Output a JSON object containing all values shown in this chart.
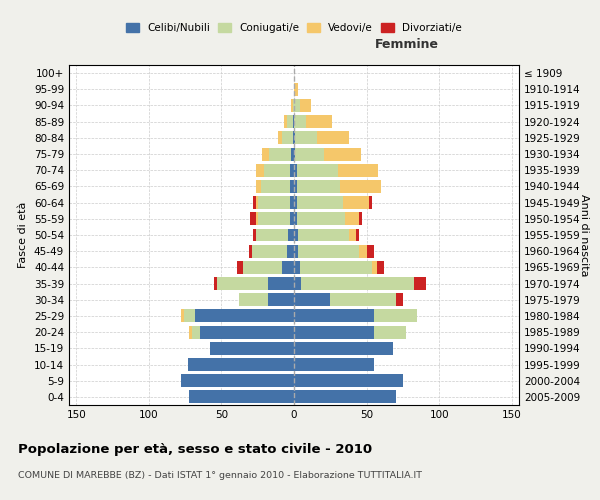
{
  "age_groups": [
    "0-4",
    "5-9",
    "10-14",
    "15-19",
    "20-24",
    "25-29",
    "30-34",
    "35-39",
    "40-44",
    "45-49",
    "50-54",
    "55-59",
    "60-64",
    "65-69",
    "70-74",
    "75-79",
    "80-84",
    "85-89",
    "90-94",
    "95-99",
    "100+"
  ],
  "birth_years": [
    "2005-2009",
    "2000-2004",
    "1995-1999",
    "1990-1994",
    "1985-1989",
    "1980-1984",
    "1975-1979",
    "1970-1974",
    "1965-1969",
    "1960-1964",
    "1955-1959",
    "1950-1954",
    "1945-1949",
    "1940-1944",
    "1935-1939",
    "1930-1934",
    "1925-1929",
    "1920-1924",
    "1915-1919",
    "1910-1914",
    "≤ 1909"
  ],
  "male": {
    "celibi": [
      72,
      78,
      73,
      58,
      65,
      68,
      18,
      18,
      8,
      5,
      4,
      3,
      3,
      3,
      3,
      2,
      1,
      1,
      0,
      0,
      0
    ],
    "coniugati": [
      0,
      0,
      0,
      0,
      5,
      8,
      20,
      35,
      27,
      24,
      22,
      22,
      22,
      20,
      18,
      15,
      7,
      4,
      1,
      0,
      0
    ],
    "vedovi": [
      0,
      0,
      0,
      0,
      2,
      2,
      0,
      0,
      0,
      0,
      0,
      1,
      1,
      3,
      5,
      5,
      3,
      2,
      1,
      0,
      0
    ],
    "divorziati": [
      0,
      0,
      0,
      0,
      0,
      0,
      0,
      2,
      4,
      2,
      2,
      4,
      2,
      0,
      0,
      0,
      0,
      0,
      0,
      0,
      0
    ]
  },
  "female": {
    "nubili": [
      70,
      75,
      55,
      68,
      55,
      55,
      25,
      5,
      4,
      3,
      3,
      2,
      2,
      2,
      2,
      1,
      1,
      0,
      0,
      0,
      0
    ],
    "coniugate": [
      0,
      0,
      0,
      0,
      22,
      30,
      45,
      78,
      50,
      42,
      35,
      33,
      32,
      30,
      28,
      20,
      15,
      8,
      4,
      0,
      0
    ],
    "vedove": [
      0,
      0,
      0,
      0,
      0,
      0,
      0,
      0,
      3,
      5,
      5,
      10,
      18,
      28,
      28,
      25,
      22,
      18,
      8,
      3,
      0
    ],
    "divorziate": [
      0,
      0,
      0,
      0,
      0,
      0,
      5,
      8,
      5,
      5,
      2,
      2,
      2,
      0,
      0,
      0,
      0,
      0,
      0,
      0,
      0
    ]
  },
  "colors": {
    "celibi": "#4472a8",
    "coniugati": "#c5d9a0",
    "vedovi": "#f5c76a",
    "divorziati": "#cc2222"
  },
  "xlim": 155,
  "title": "Popolazione per età, sesso e stato civile - 2010",
  "subtitle": "COMUNE DI MAREBBE (BZ) - Dati ISTAT 1° gennaio 2010 - Elaborazione TUTTITALIA.IT",
  "xlabel_right": "Femmine",
  "ylabel_left": "Fasce di età",
  "ylabel_right": "Anni di nascita",
  "legend_labels": [
    "Celibi/Nubili",
    "Coniugati/e",
    "Vedovi/e",
    "Divorziati/e"
  ],
  "bg_color": "#f0f0eb",
  "plot_bg": "#ffffff"
}
